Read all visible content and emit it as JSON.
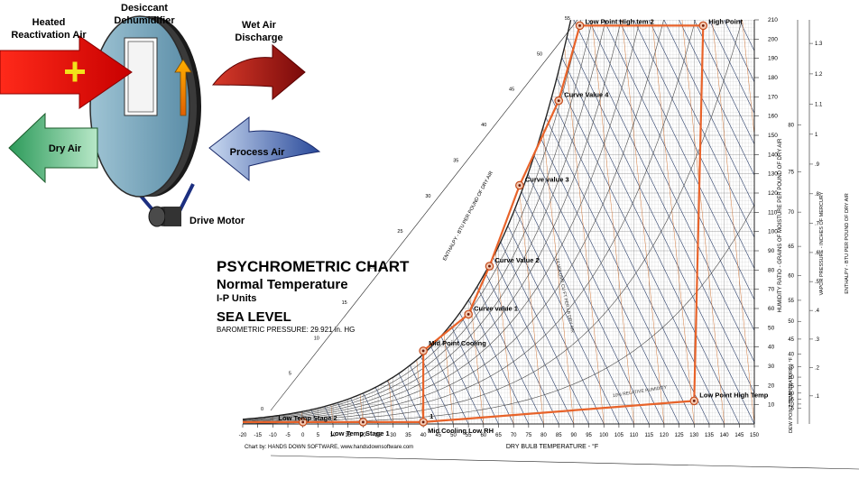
{
  "diagram": {
    "heated_reactivation_air": "Heated\nReactivation Air",
    "desiccant_dehumidifier": "Desiccant\nDehumidifier",
    "wet_air_discharge": "Wet Air\nDischarge",
    "dry_air": "Dry Air",
    "process_air": "Process Air",
    "drive_motor": "Drive Motor"
  },
  "title_block": {
    "title": "PSYCHROMETRIC CHART",
    "subtitle": "Normal Temperature",
    "units": "I-P Units",
    "altitude": "SEA LEVEL",
    "barometric": "BAROMETRIC PRESSURE: 29.921 in. HG"
  },
  "credit": "Chart by: HANDS DOWN SOFTWARE, www.handsdownsoftware.com",
  "chart_data": {
    "type": "line",
    "xlabel": "DRY BULB TEMPERATURE - °F",
    "ylabel_right": "HUMIDITY RATIO - GRAINS OF MOISTURE PER POUND OF DRY AIR",
    "axis_label_dewpoint": "DEW POINT TEMPERATURE - °F",
    "axis_label_vapor": "VAPOR PRESSURE - INCHES OF MERCURY",
    "axis_label_enthalpy_right": "ENTHALPY - BTU PER POUND OF DRY AIR",
    "axis_label_enthalpy_left": "ENTHALPY - BTU PER POUND OF DRY AIR",
    "axis_label_volume": "14 VOLUME CU FT PER LB DRY AIR",
    "rh_label": "10% RELATIVE HUMIDITY",
    "xlim": [
      -20,
      150
    ],
    "ylim": [
      0,
      210
    ],
    "x_ticks": [
      -20,
      -15,
      -10,
      -5,
      0,
      5,
      10,
      15,
      20,
      25,
      30,
      35,
      40,
      45,
      50,
      55,
      60,
      65,
      70,
      75,
      80,
      85,
      90,
      95,
      100,
      105,
      110,
      115,
      120,
      125,
      130,
      135,
      140,
      145,
      150
    ],
    "y_ticks": [
      10,
      20,
      30,
      40,
      50,
      60,
      70,
      80,
      90,
      100,
      110,
      120,
      130,
      140,
      150,
      160,
      170,
      180,
      190,
      200,
      210
    ],
    "vapor_ticks": [
      ".1",
      ".2",
      ".3",
      ".4",
      ".5",
      ".6",
      ".7",
      ".8",
      ".9",
      "1",
      "1.1",
      "1.2",
      "1.3"
    ],
    "dewpoint_ticks": [
      5,
      10,
      15,
      20,
      25,
      30,
      35,
      40,
      45,
      50,
      55,
      60,
      65,
      70,
      75,
      80
    ],
    "enthalpy_scale_ticks": [
      0,
      5,
      10,
      15,
      20,
      25,
      30,
      35,
      40,
      45,
      50,
      55
    ],
    "rh_curves_percent": [
      10,
      20,
      30,
      40,
      50,
      60,
      70,
      80,
      90,
      100
    ],
    "series": [
      {
        "x": [
          -20,
          0,
          20,
          40,
          40,
          55,
          62,
          72,
          85,
          92,
          133,
          130,
          40
        ],
        "y": [
          1,
          1,
          1,
          1,
          38,
          57,
          82,
          124,
          168,
          207,
          207,
          12,
          1
        ]
      }
    ],
    "points": [
      {
        "label": "Low Temp Stage 2",
        "x": 0,
        "y": 1
      },
      {
        "label": "Low Temp Stage 1",
        "x": 20,
        "y": 1
      },
      {
        "label": "1",
        "x": 40,
        "y": 1
      },
      {
        "label": "Mid Cooling Low RH",
        "x": 40,
        "y": 1
      },
      {
        "label": "Mid Point Cooling",
        "x": 40,
        "y": 38
      },
      {
        "label": "Curve value 1",
        "x": 55,
        "y": 57
      },
      {
        "label": "Curve Value 2",
        "x": 62,
        "y": 82
      },
      {
        "label": "Curve value 3",
        "x": 72,
        "y": 124
      },
      {
        "label": "Curve Value 4",
        "x": 85,
        "y": 168
      },
      {
        "label": "Low Point High tem 2",
        "x": 92,
        "y": 207
      },
      {
        "label": "High Point",
        "x": 133,
        "y": 207
      },
      {
        "label": "Low Point High Temp",
        "x": 130,
        "y": 12
      }
    ],
    "grid": true,
    "colors": {
      "process_line": "#e8632a",
      "grid": "#8a8a8a",
      "enthalpy_lines": "#2a3e6a",
      "orange_lines": "#d47a3c"
    }
  }
}
